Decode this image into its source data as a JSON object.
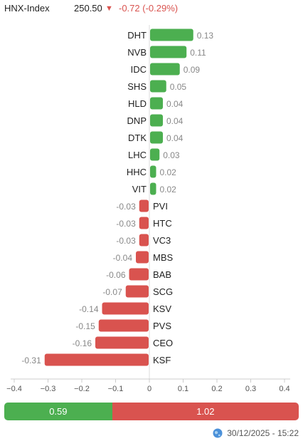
{
  "header": {
    "index_name": "HNX-Index",
    "value": "250.50",
    "arrow": "▼",
    "change": "-0.72 (-0.29%)"
  },
  "chart_data": {
    "type": "bar",
    "orientation": "horizontal",
    "categories": [
      "DHT",
      "NVB",
      "IDC",
      "SHS",
      "HLD",
      "DNP",
      "DTK",
      "LHC",
      "HHC",
      "VIT",
      "PVI",
      "HTC",
      "VC3",
      "MBS",
      "BAB",
      "SCG",
      "KSV",
      "PVS",
      "CEO",
      "KSF"
    ],
    "values": [
      0.13,
      0.11,
      0.09,
      0.05,
      0.04,
      0.04,
      0.04,
      0.03,
      0.02,
      0.02,
      -0.03,
      -0.03,
      -0.03,
      -0.04,
      -0.06,
      -0.07,
      -0.14,
      -0.15,
      -0.16,
      -0.31
    ],
    "value_labels": [
      "0.13",
      "0.11",
      "0.09",
      "0.05",
      "0.04",
      "0.04",
      "0.04",
      "0.03",
      "0.02",
      "0.02",
      "-0.03",
      "-0.03",
      "-0.03",
      "-0.04",
      "-0.06",
      "-0.07",
      "-0.14",
      "-0.15",
      "-0.16",
      "-0.31"
    ],
    "xlim": [
      -0.4,
      0.4
    ],
    "x_ticks": [
      -0.4,
      -0.3,
      -0.2,
      -0.1,
      0,
      0.1,
      0.2,
      0.3,
      0.4
    ],
    "x_tick_labels": [
      "−0.4",
      "−0.3",
      "−0.2",
      "−0.1",
      "0",
      "0.1",
      "0.2",
      "0.3",
      "0.4"
    ],
    "grid": false,
    "positive_color": "#4caf50",
    "negative_color": "#d9534f"
  },
  "ratio": {
    "up_label": "0.59",
    "down_label": "1.02",
    "up_value": 0.59,
    "down_value": 1.02
  },
  "footer": {
    "icon": "globe-icon",
    "timestamp": "30/12/2025 - 15:22"
  }
}
